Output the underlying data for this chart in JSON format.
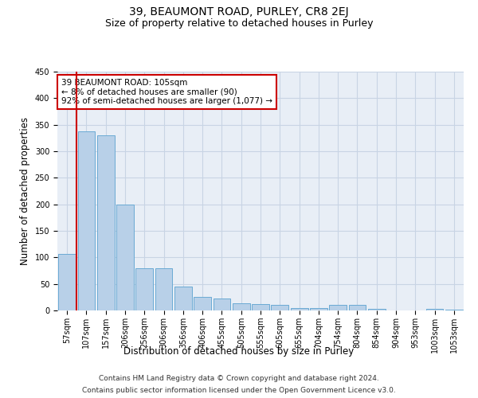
{
  "title1": "39, BEAUMONT ROAD, PURLEY, CR8 2EJ",
  "title2": "Size of property relative to detached houses in Purley",
  "xlabel": "Distribution of detached houses by size in Purley",
  "ylabel": "Number of detached properties",
  "categories": [
    "57sqm",
    "107sqm",
    "157sqm",
    "206sqm",
    "256sqm",
    "306sqm",
    "356sqm",
    "406sqm",
    "455sqm",
    "505sqm",
    "555sqm",
    "605sqm",
    "655sqm",
    "704sqm",
    "754sqm",
    "804sqm",
    "854sqm",
    "904sqm",
    "953sqm",
    "1003sqm",
    "1053sqm"
  ],
  "values": [
    107,
    337,
    330,
    200,
    80,
    80,
    45,
    25,
    22,
    13,
    12,
    10,
    5,
    5,
    10,
    10,
    3,
    0,
    0,
    3,
    2
  ],
  "bar_color": "#b8d0e8",
  "bar_edge_color": "#6aaad4",
  "grid_color": "#c8d4e4",
  "background_color": "#e8eef6",
  "annotation_box_color": "#cc0000",
  "vline_color": "#cc0000",
  "vline_x_index": 1,
  "annotation_line1": "39 BEAUMONT ROAD: 105sqm",
  "annotation_line2": "← 8% of detached houses are smaller (90)",
  "annotation_line3": "92% of semi-detached houses are larger (1,077) →",
  "footer1": "Contains HM Land Registry data © Crown copyright and database right 2024.",
  "footer2": "Contains public sector information licensed under the Open Government Licence v3.0.",
  "ylim": [
    0,
    450
  ],
  "yticks": [
    0,
    50,
    100,
    150,
    200,
    250,
    300,
    350,
    400,
    450
  ],
  "title1_fontsize": 10,
  "title2_fontsize": 9,
  "axis_label_fontsize": 8.5,
  "tick_fontsize": 7,
  "annotation_fontsize": 7.5,
  "footer_fontsize": 6.5
}
